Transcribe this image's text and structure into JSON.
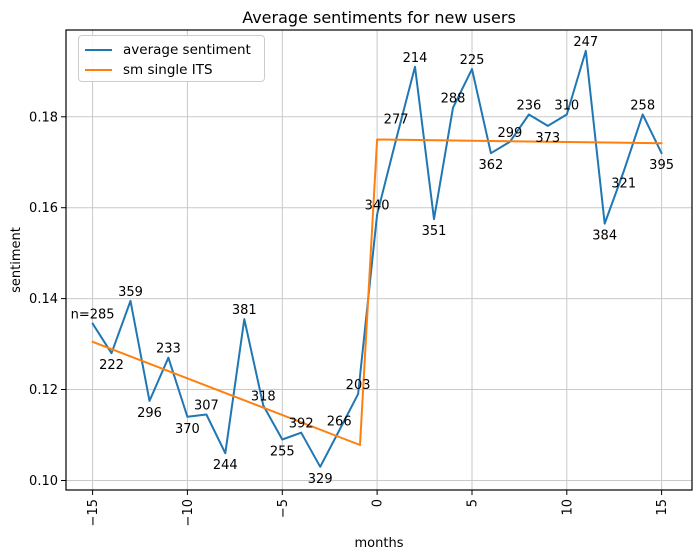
{
  "chart_data": {
    "type": "line",
    "title": "Average sentiments for new users",
    "xlabel": "months",
    "ylabel": "sentiment",
    "grid": true,
    "legend_position": "upper left",
    "xlim": [
      -16.4,
      16.6
    ],
    "ylim": [
      0.0979,
      0.1991
    ],
    "xticks": [
      -15,
      -10,
      -5,
      0,
      5,
      10,
      15
    ],
    "xticklabels": [
      "−15",
      "−10",
      "−5",
      "0",
      "5",
      "10",
      "15"
    ],
    "yticks": [
      0.1,
      0.12,
      0.14,
      0.16,
      0.18
    ],
    "yticklabels": [
      "0.10",
      "0.12",
      "0.14",
      "0.16",
      "0.18"
    ],
    "series": [
      {
        "id": "average-sentiment",
        "name": "average sentiment",
        "color": "#1f77b4",
        "x": [
          -15,
          -14,
          -13,
          -12,
          -11,
          -10,
          -9,
          -8,
          -7,
          -6,
          -5,
          -4,
          -3,
          -2,
          -1,
          0,
          1,
          2,
          3,
          4,
          5,
          6,
          7,
          8,
          9,
          10,
          11,
          12,
          13,
          14,
          15
        ],
        "y": [
          0.1345,
          0.128,
          0.1395,
          0.1175,
          0.127,
          0.114,
          0.1145,
          0.106,
          0.1355,
          0.1165,
          0.109,
          0.1105,
          0.103,
          0.111,
          0.119,
          0.1585,
          0.175,
          0.191,
          0.1575,
          0.182,
          0.1905,
          0.172,
          0.1745,
          0.1805,
          0.178,
          0.1805,
          0.1945,
          0.1565,
          0.168,
          0.1805,
          0.172
        ],
        "point_labels": [
          {
            "text": "n=285",
            "pos": "above"
          },
          {
            "text": "222",
            "pos": "below"
          },
          {
            "text": "359",
            "pos": "above"
          },
          {
            "text": "296",
            "pos": "below"
          },
          {
            "text": "233",
            "pos": "above"
          },
          {
            "text": "370",
            "pos": "below"
          },
          {
            "text": "307",
            "pos": "above"
          },
          {
            "text": "244",
            "pos": "below"
          },
          {
            "text": "381",
            "pos": "above"
          },
          {
            "text": "318",
            "pos": "above"
          },
          {
            "text": "255",
            "pos": "below"
          },
          {
            "text": "392",
            "pos": "above"
          },
          {
            "text": "329",
            "pos": "below"
          },
          {
            "text": "266",
            "pos": "above"
          },
          {
            "text": "203",
            "pos": "above"
          },
          {
            "text": "340",
            "pos": "above"
          },
          {
            "text": "277",
            "pos": "above",
            "dy": -16
          },
          {
            "text": "214",
            "pos": "above"
          },
          {
            "text": "351",
            "pos": "below"
          },
          {
            "text": "288",
            "pos": "above"
          },
          {
            "text": "225",
            "pos": "above"
          },
          {
            "text": "362",
            "pos": "below"
          },
          {
            "text": "299",
            "pos": "above"
          },
          {
            "text": "236",
            "pos": "above"
          },
          {
            "text": "373",
            "pos": "below"
          },
          {
            "text": "310",
            "pos": "above"
          },
          {
            "text": "247",
            "pos": "above"
          },
          {
            "text": "384",
            "pos": "below"
          },
          {
            "text": "321",
            "pos": "below"
          },
          {
            "text": "258",
            "pos": "above"
          },
          {
            "text": "395",
            "pos": "below"
          }
        ]
      },
      {
        "id": "sm-single-its",
        "name": "sm single ITS",
        "color": "#ff7f0e",
        "x": [
          -15,
          -0.9,
          0,
          15
        ],
        "y": [
          0.1305,
          0.1078,
          0.175,
          0.1742
        ]
      }
    ]
  }
}
